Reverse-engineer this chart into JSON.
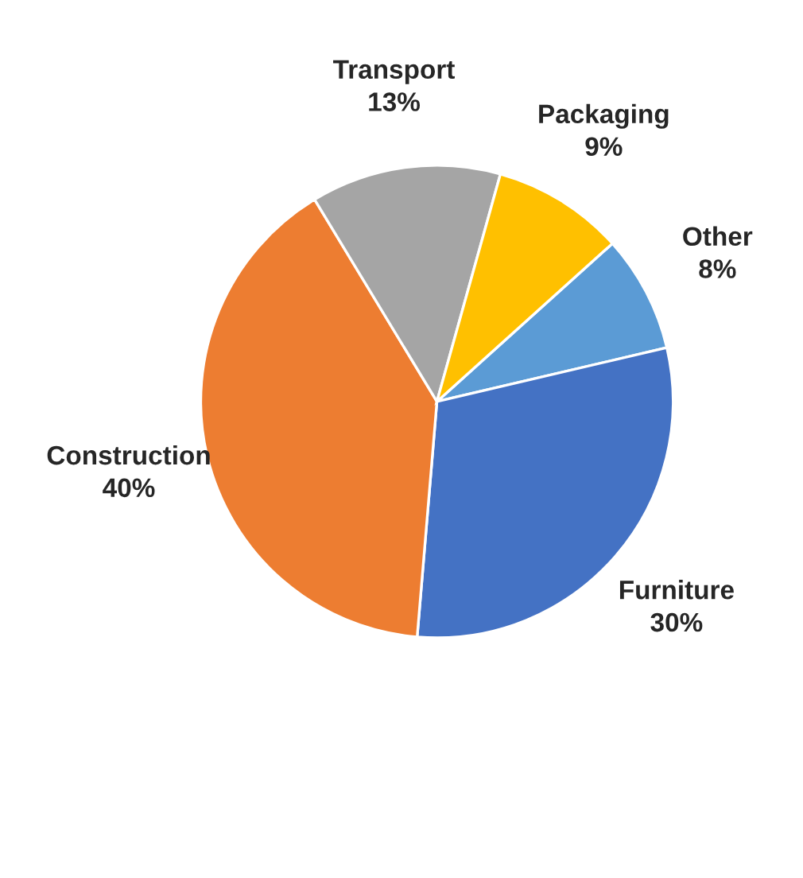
{
  "chart_data": {
    "type": "pie",
    "categories": [
      "Other",
      "Furniture",
      "Construction",
      "Transport",
      "Packaging"
    ],
    "values": [
      8,
      30,
      40,
      13,
      9
    ],
    "colors": [
      "#5b9bd5",
      "#4472c4",
      "#ed7d31",
      "#a5a5a5",
      "#ffc000"
    ],
    "value_labels": [
      "8%",
      "30%",
      "40%",
      "13%",
      "9%"
    ],
    "legend": false
  }
}
